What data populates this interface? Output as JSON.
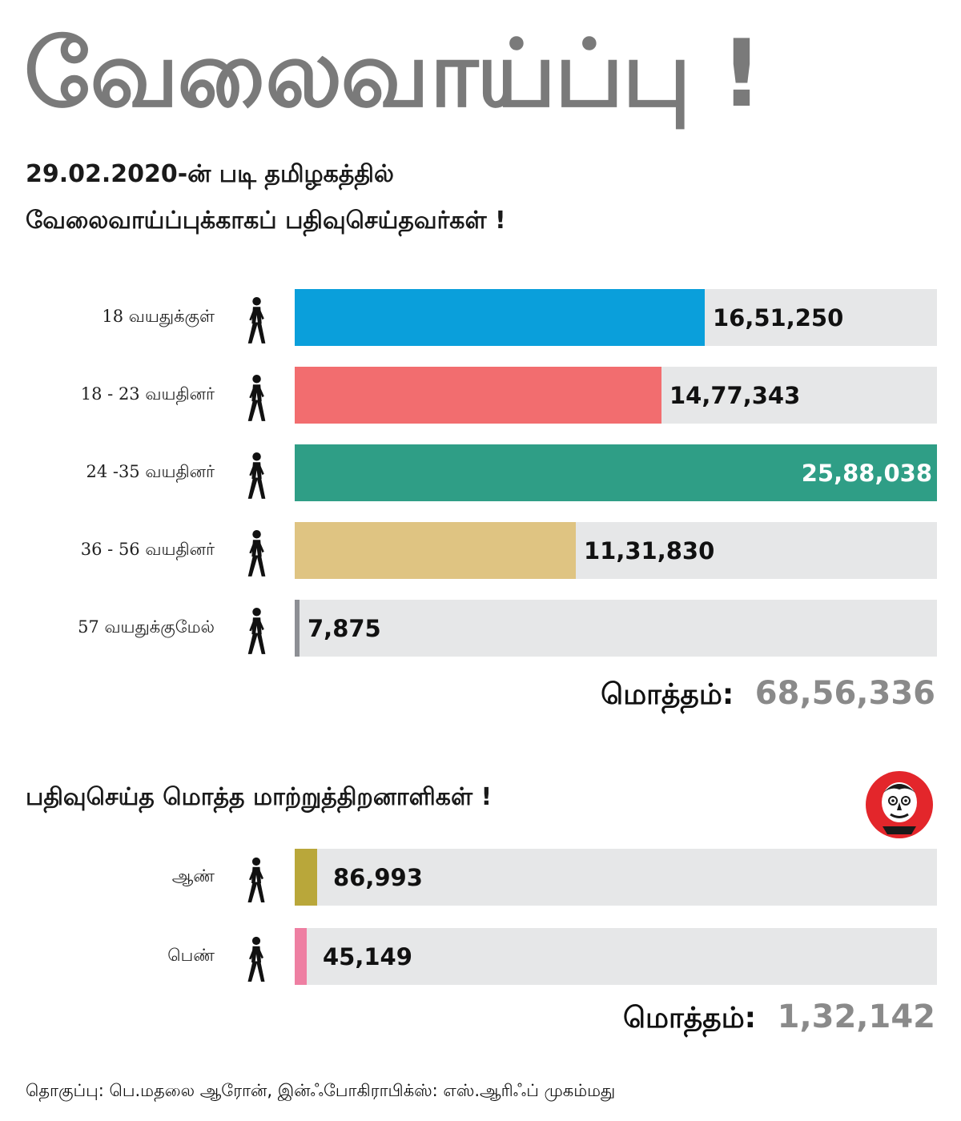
{
  "title": "வேலைவாய்ப்பு !",
  "subtitle_line1": "29.02.2020-ன் படி தமிழகத்தில்",
  "subtitle_line2": "வேலைவாய்ப்புக்காகப் பதிவுசெய்தவர்கள் !",
  "subtitle_section2": "பதிவுசெய்த மொத்த மாற்றுத்திறனாளிகள் !",
  "total_label": "மொத்தம்:",
  "credit": "தொகுப்பு: பெ.மதலை ஆரோன், இன்ஃபோகிராபிக்ஸ்: எஸ்.ஆரிஃப் முகம்மது",
  "icons": {
    "person": "walking-person-icon",
    "logo": "cartoon-face-logo"
  },
  "chart_data": [
    {
      "type": "bar",
      "orientation": "horizontal",
      "title": "",
      "categories": [
        "18 வயதுக்குள்",
        "18 - 23 வயதினர்",
        "24 -35 வயதினர்",
        "36 - 56 வயதினர்",
        "57 வயதுக்குமேல்"
      ],
      "values": [
        1651250,
        1477343,
        2588038,
        1131830,
        7875
      ],
      "value_labels": [
        "16,51,250",
        "14,77,343",
        "25,88,038",
        "11,31,830",
        "7,875"
      ],
      "colors": [
        "#0a9fdb",
        "#f26d6f",
        "#2f9e86",
        "#dfc482",
        "#8d8f94"
      ],
      "xlim": [
        0,
        2588038
      ],
      "grid": false,
      "total": "68,56,336"
    },
    {
      "type": "bar",
      "orientation": "horizontal",
      "title": "",
      "categories": [
        "ஆண்",
        "பெண்"
      ],
      "values": [
        86993,
        45149
      ],
      "value_labels": [
        "86,993",
        "45,149"
      ],
      "colors": [
        "#b9a73a",
        "#ee7fa2"
      ],
      "grid": false,
      "total": "1,32,142"
    }
  ]
}
